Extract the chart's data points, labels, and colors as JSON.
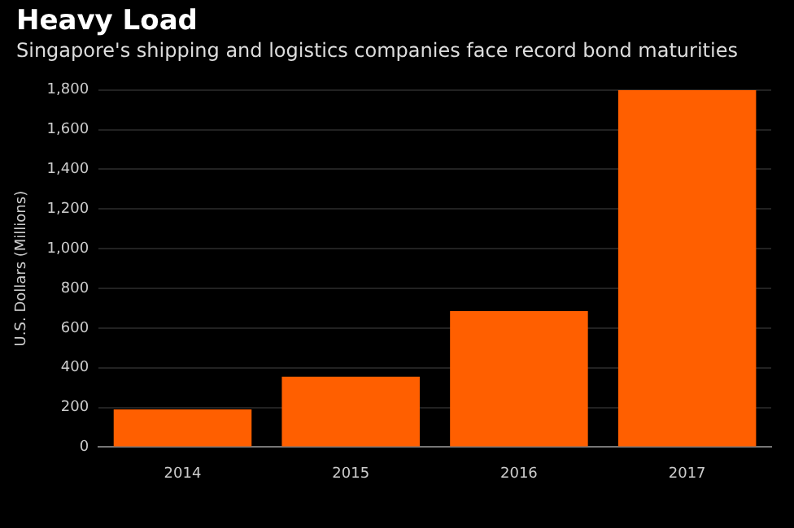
{
  "chart_data": {
    "type": "bar",
    "title": "Heavy Load",
    "subtitle": "Singapore's shipping and logistics companies face record bond maturities",
    "ylabel": "U.S. Dollars (Millions)",
    "categories": [
      "2014",
      "2015",
      "2016",
      "2017"
    ],
    "values": [
      190,
      355,
      685,
      1800
    ],
    "color": "#ff5f00",
    "ylim": [
      0,
      1800
    ],
    "yticks": [
      {
        "value": 0,
        "label": "0"
      },
      {
        "value": 200,
        "label": "200"
      },
      {
        "value": 400,
        "label": "400"
      },
      {
        "value": 600,
        "label": "600"
      },
      {
        "value": 800,
        "label": "800"
      },
      {
        "value": 1000,
        "label": "1,000"
      },
      {
        "value": 1200,
        "label": "1,200"
      },
      {
        "value": 1400,
        "label": "1,400"
      },
      {
        "value": 1600,
        "label": "1,600"
      },
      {
        "value": 1800,
        "label": "1,800"
      }
    ],
    "grid": "y",
    "legend": false
  }
}
